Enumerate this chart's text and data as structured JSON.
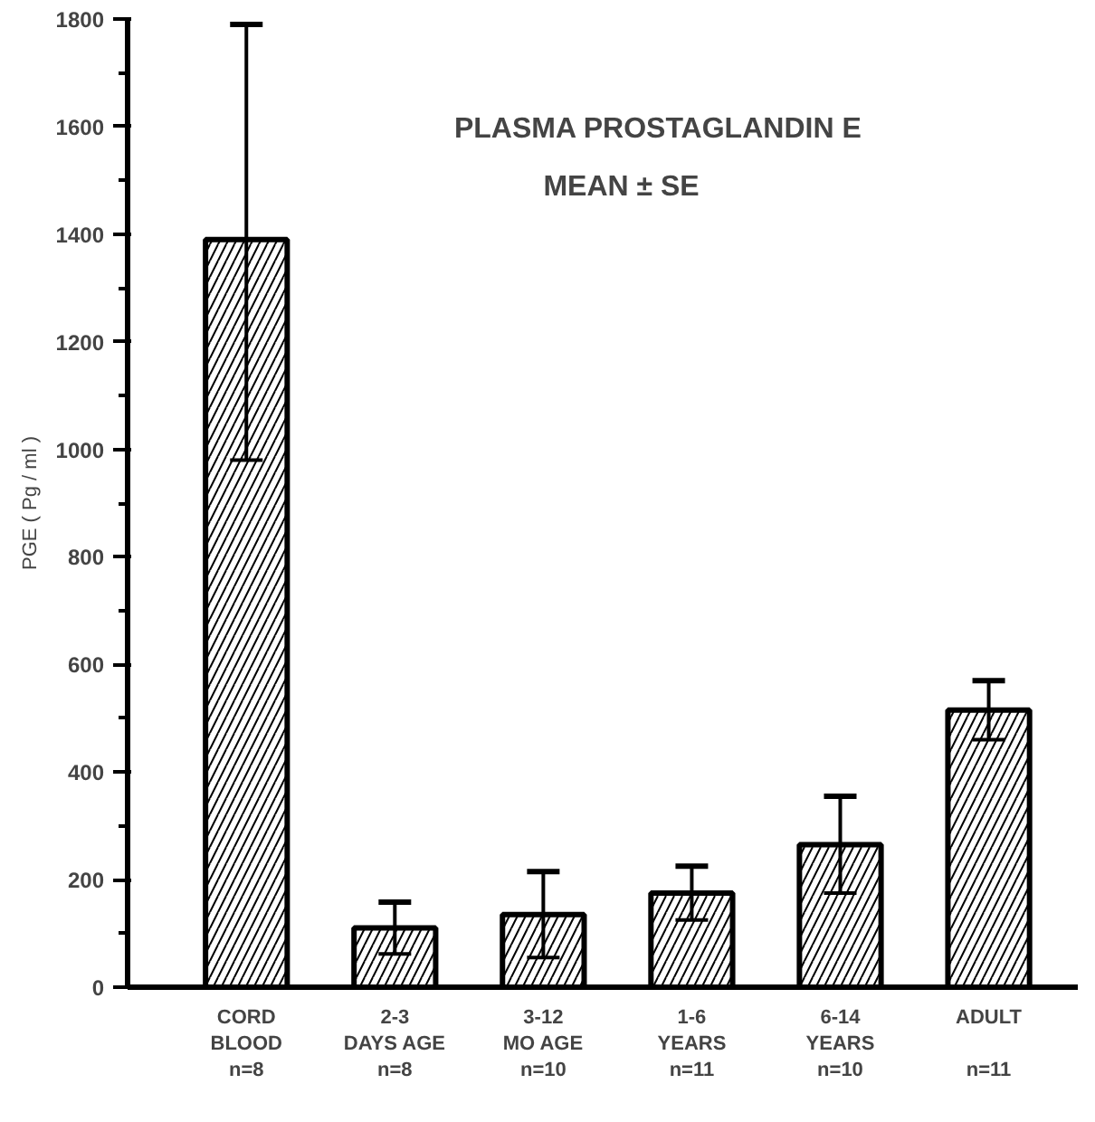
{
  "chart_data": {
    "type": "bar",
    "title": "PLASMA PROSTAGLANDIN E",
    "subtitle": "MEAN ± SE",
    "ylabel": "PGE ( Pg / ml )",
    "categories": [
      "CORD\nBLOOD\nn=8",
      "2-3\nDAYS AGE\nn=8",
      "3-12\nMO AGE\nn=10",
      "1-6\nYEARS\nn=11",
      "6-14\nYEARS\nn=10",
      "ADULT\n\nn=11"
    ],
    "values": [
      1390,
      110,
      135,
      175,
      265,
      515
    ],
    "errors": [
      [
        980,
        1790
      ],
      48,
      80,
      50,
      90,
      55
    ],
    "color": "#000000",
    "ylim": [
      0,
      1800
    ],
    "yticks": [
      0,
      200,
      400,
      600,
      800,
      1000,
      1200,
      1400,
      1600,
      1800
    ],
    "grid": false
  }
}
